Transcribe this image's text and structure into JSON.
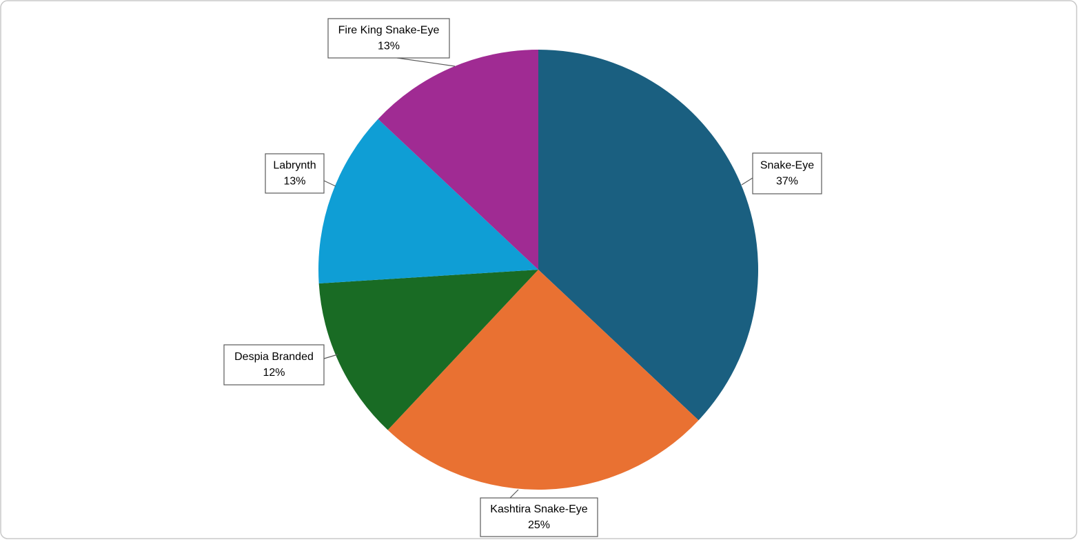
{
  "chart_data": {
    "type": "pie",
    "categories": [
      "Snake-Eye",
      "Kashtira Snake-Eye",
      "Despia Branded",
      "Labrynth",
      "Fire King Snake-Eye"
    ],
    "values": [
      37,
      25,
      12,
      13,
      13
    ],
    "value_labels": [
      "37%",
      "25%",
      "12%",
      "13%",
      "13%"
    ],
    "colors": [
      "#1a5f80",
      "#e97132",
      "#196b24",
      "#0f9ed5",
      "#a02b93"
    ]
  }
}
